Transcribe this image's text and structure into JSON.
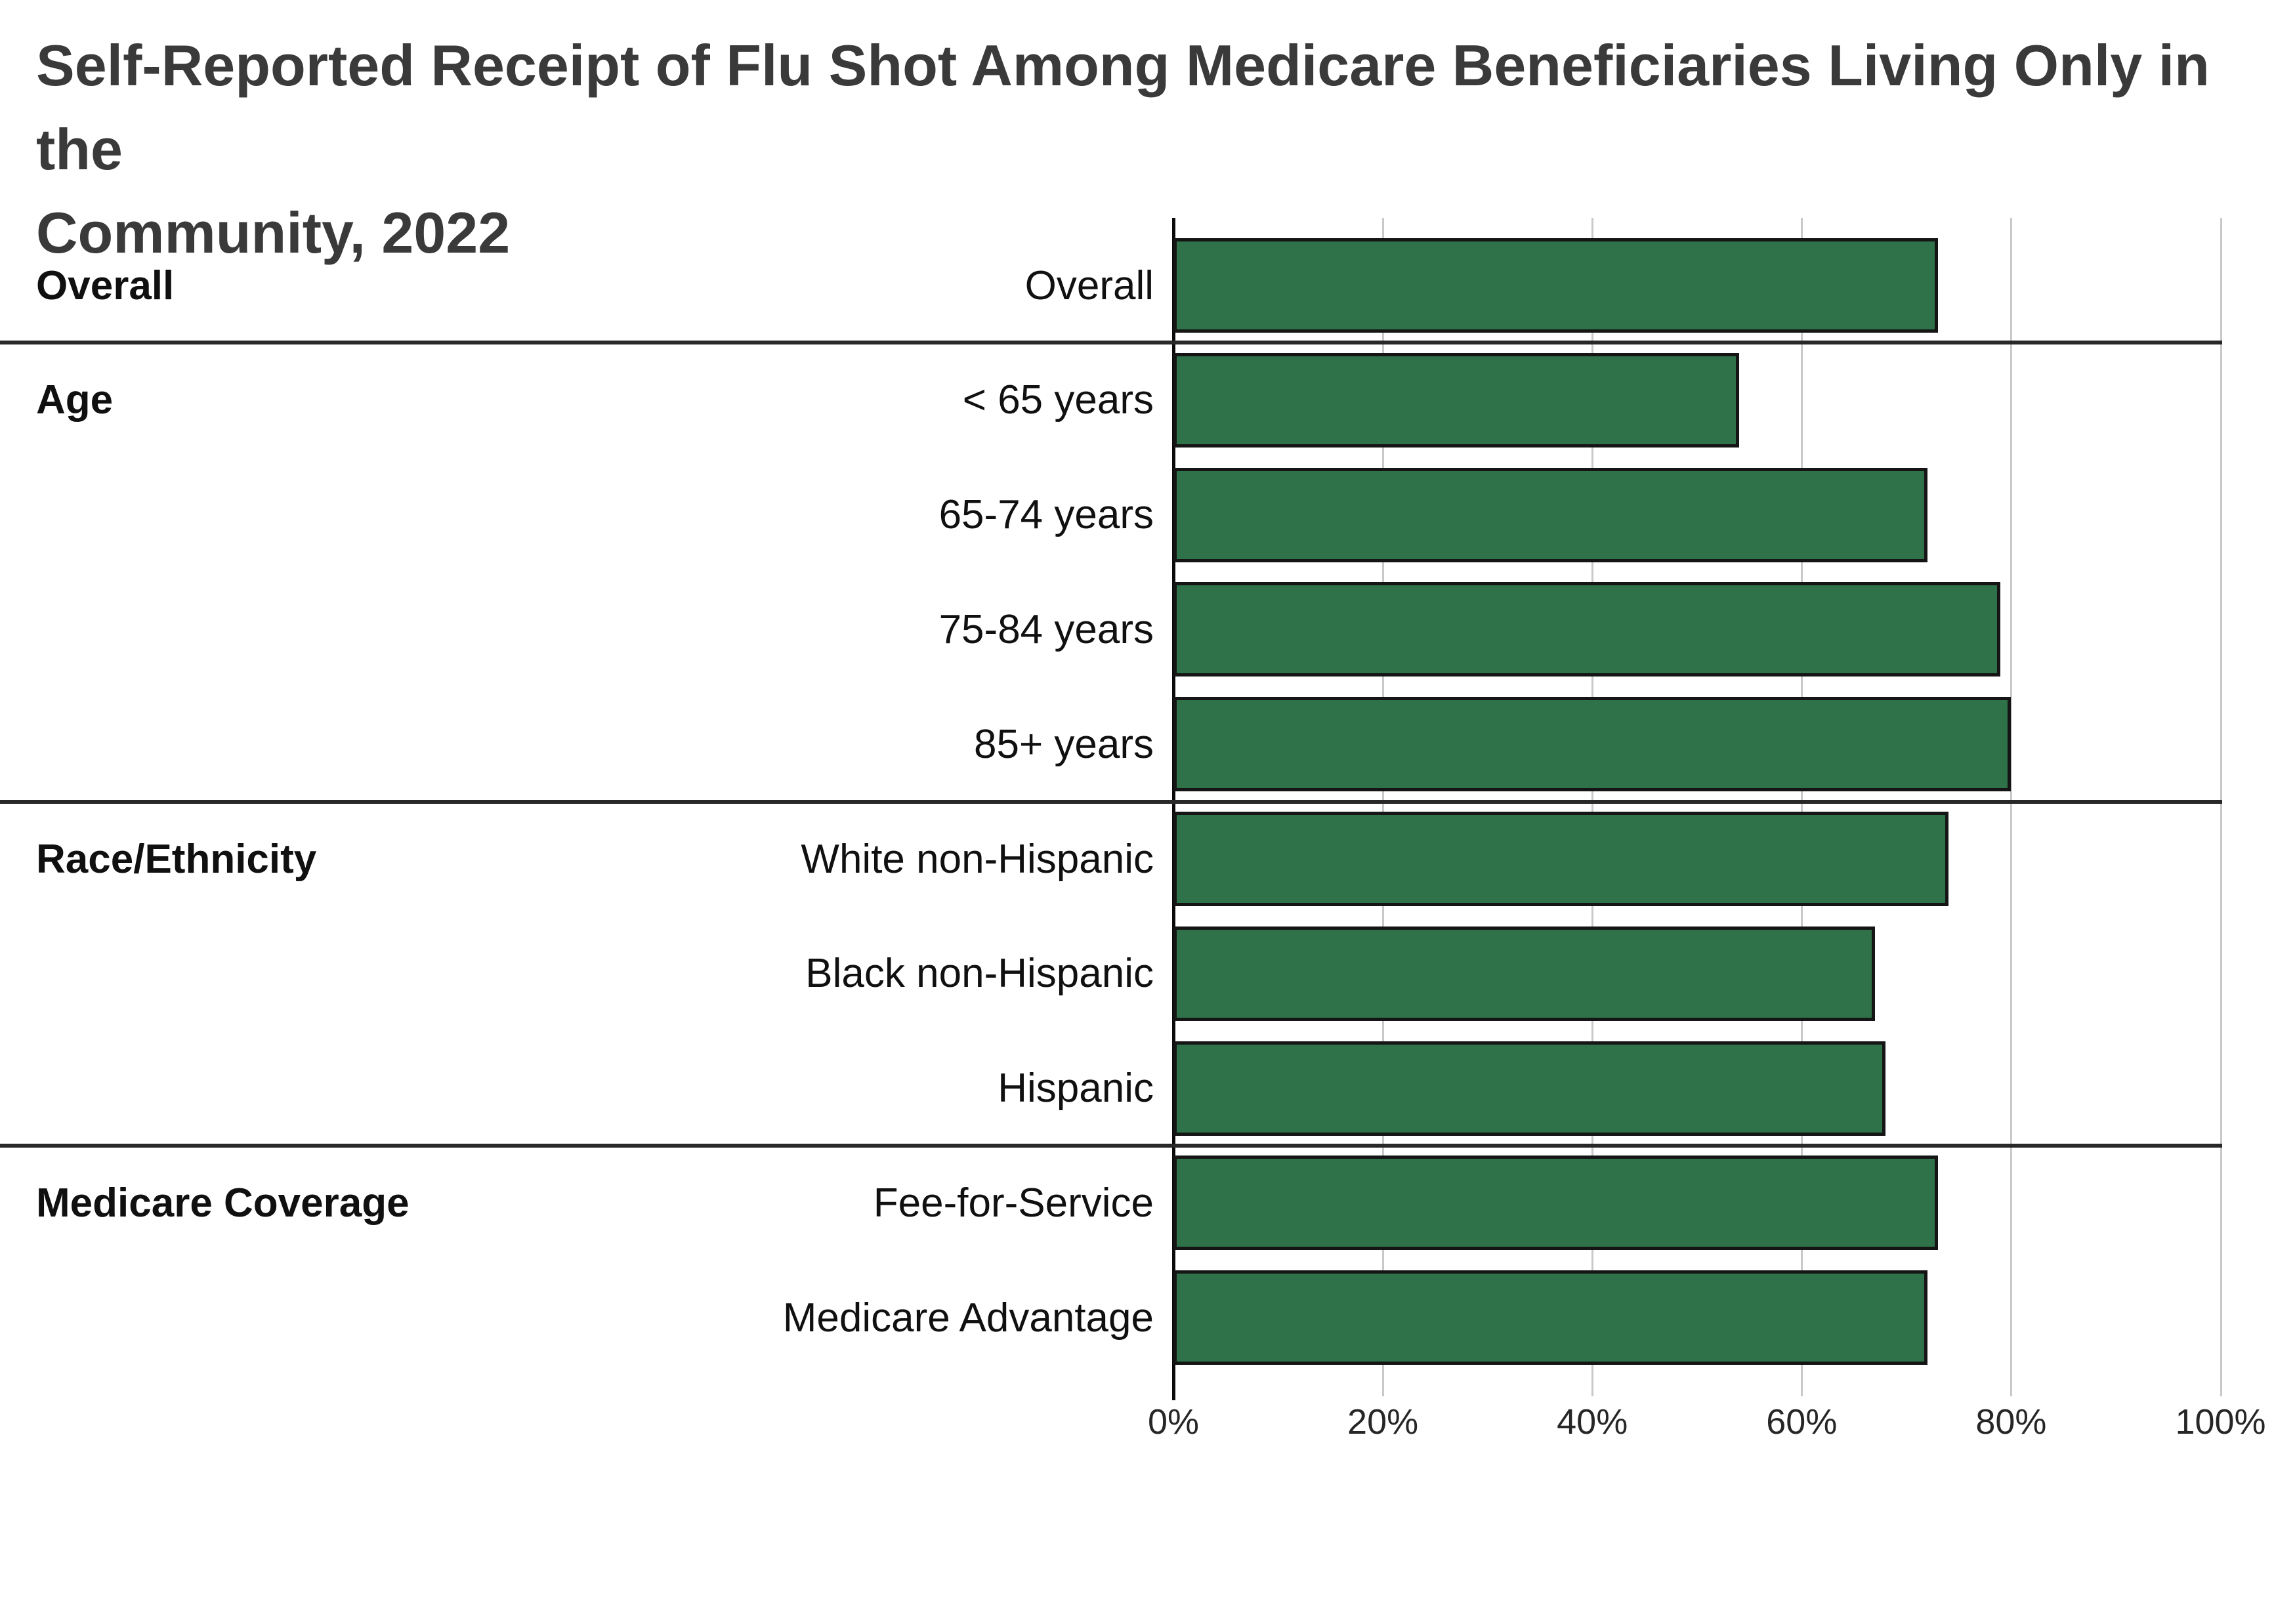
{
  "chart": {
    "title_line1": "Self-Reported Receipt of Flu Shot Among Medicare Beneficiaries Living Only in the",
    "title_line2": "Community, 2022"
  },
  "chart_data": {
    "type": "bar",
    "orientation": "horizontal",
    "title": "Self-Reported Receipt of Flu Shot Among Medicare Beneficiaries Living Only in the Community, 2022",
    "unit": "percent",
    "xlim": [
      0,
      100
    ],
    "x_ticks": [
      "0%",
      "20%",
      "40%",
      "60%",
      "80%",
      "100%"
    ],
    "x_tick_values": [
      0,
      20,
      40,
      60,
      80,
      100
    ],
    "grid": true,
    "legend": false,
    "bar_color": "#2F7249",
    "bar_border_color": "#151515",
    "groups": [
      {
        "label": "Overall",
        "items": [
          {
            "category": "Overall",
            "value": 73
          }
        ]
      },
      {
        "label": "Age",
        "items": [
          {
            "category": "< 65 years",
            "value": 54
          },
          {
            "category": "65-74 years",
            "value": 72
          },
          {
            "category": "75-84 years",
            "value": 79
          },
          {
            "category": "85+ years",
            "value": 80
          }
        ]
      },
      {
        "label": "Race/Ethnicity",
        "items": [
          {
            "category": "White non-Hispanic",
            "value": 74
          },
          {
            "category": "Black non-Hispanic",
            "value": 67
          },
          {
            "category": "Hispanic",
            "value": 68
          }
        ]
      },
      {
        "label": "Medicare Coverage",
        "items": [
          {
            "category": "Fee-for-Service",
            "value": 73
          },
          {
            "category": "Medicare Advantage",
            "value": 72
          }
        ]
      }
    ]
  }
}
